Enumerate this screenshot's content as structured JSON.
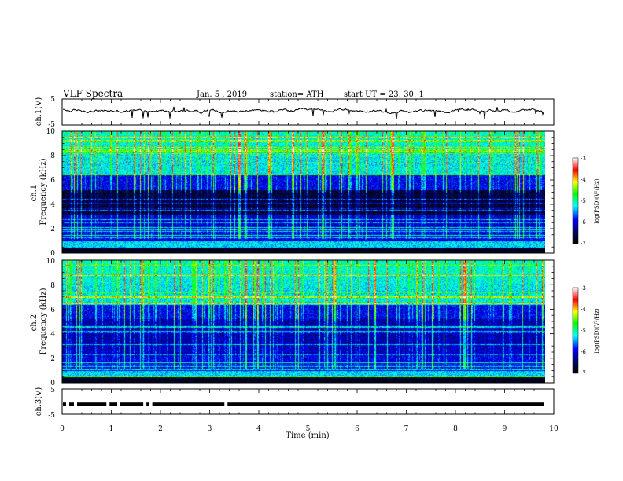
{
  "header": {
    "title": "VLF  Spectra",
    "date": "Jan.  5  , 2019",
    "station": "station= ATH",
    "start": "start  UT  =    23: 30: 1"
  },
  "colors": {
    "colormap": [
      "#000000",
      "#000a50",
      "#0000ff",
      "#00ffff",
      "#00ff00",
      "#ffff00",
      "#ff0000",
      "#ffffff"
    ]
  },
  "chart_data": [
    {
      "type": "line",
      "panel": "ch1-waveform",
      "ylabel": "ch.1(V)",
      "ylim": [
        -5,
        5
      ],
      "yticks": [
        "5",
        "-5"
      ],
      "xlim": [
        0,
        10
      ],
      "data_end_min": 9.8
    },
    {
      "type": "heatmap",
      "panel": "ch1-spectrogram",
      "ylabel": "ch.1\nFrequency (kHz)",
      "ylim": [
        0,
        10
      ],
      "yticks": [
        "0",
        "2",
        "4",
        "6",
        "8",
        "10"
      ],
      "xlim": [
        0,
        10
      ],
      "data_end_min": 9.8,
      "colorbar": {
        "label": "log(PSD)(V²/Hz)",
        "range": [
          -7,
          -3
        ],
        "ticks": [
          "-3",
          "-4",
          "-5",
          "-6",
          "-7"
        ]
      }
    },
    {
      "type": "heatmap",
      "panel": "ch2-spectrogram",
      "ylabel": "ch.2\nFrequency (kHz)",
      "ylim": [
        0,
        10
      ],
      "yticks": [
        "0",
        "2",
        "4",
        "6",
        "8",
        "10"
      ],
      "xlim": [
        0,
        10
      ],
      "data_end_min": 9.8,
      "colorbar": {
        "label": "log(PSD)(V²/Hz)",
        "range": [
          -7,
          -3
        ],
        "ticks": [
          "-3",
          "-4",
          "-5",
          "-6",
          "-7"
        ]
      }
    },
    {
      "type": "line",
      "panel": "ch3-waveform",
      "ylabel": "ch.3(V)",
      "ylim": [
        -5,
        5
      ],
      "yticks": [
        "5",
        "-5"
      ],
      "xlim": [
        0,
        10
      ],
      "xlabel": "Time  (min)",
      "xticks": [
        "0",
        "1",
        "2",
        "3",
        "4",
        "5",
        "6",
        "7",
        "8",
        "9",
        "10"
      ],
      "data_end_min": 9.8
    }
  ]
}
